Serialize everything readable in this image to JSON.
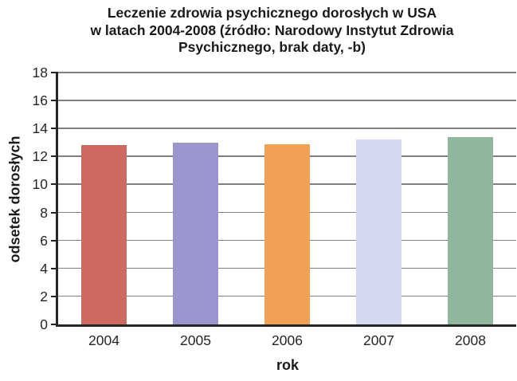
{
  "chart_data": {
    "type": "bar",
    "title": "Leczenie zdrowia psychicznego dorosłych w USA w latach 2004-2008 (źródło: Narodowy Instytut Zdrowia Psychicznego, brak daty, -b)",
    "title_lines": [
      "Leczenie zdrowia psychicznego dorosłych w USA",
      "w latach 2004-2008 (źródło: Narodowy Instytut Zdrowia",
      "Psychicznego, brak daty, -b)"
    ],
    "categories": [
      "2004",
      "2005",
      "2006",
      "2007",
      "2008"
    ],
    "values": [
      12.8,
      13.0,
      12.9,
      13.2,
      13.4
    ],
    "bar_colors": [
      "#cc6a62",
      "#9b95ce",
      "#f0a155",
      "#d3d9f0",
      "#8fb79b"
    ],
    "xlabel": "rok",
    "ylabel": "odsetek dorosłych",
    "ylim": [
      0,
      18
    ],
    "ytick_step": 2,
    "yticks": [
      0,
      2,
      4,
      6,
      8,
      10,
      12,
      14,
      16,
      18
    ],
    "grid": "horizontal",
    "legend": "none"
  },
  "colors": {
    "background": "#ffffff",
    "axis": "#262626",
    "gridline": "#808080",
    "text": "#262626"
  }
}
